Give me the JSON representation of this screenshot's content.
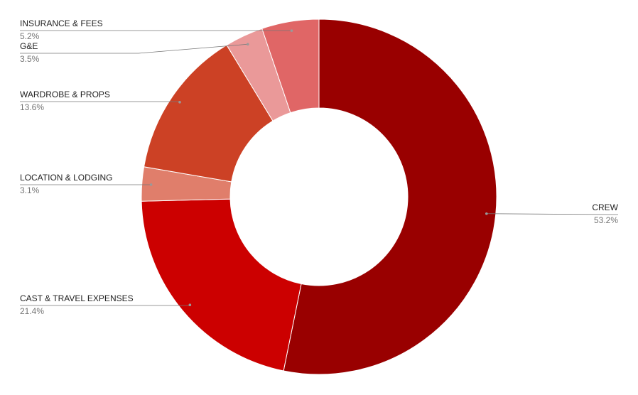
{
  "chart_data": {
    "type": "donut",
    "categories": [
      "CREW",
      "CAST & TRAVEL EXPENSES",
      "LOCATION & LODGING",
      "WARDROBE & PROPS",
      "G&E",
      "INSURANCE & FEES"
    ],
    "values": [
      53.2,
      21.4,
      3.1,
      13.6,
      3.5,
      5.2
    ],
    "value_labels": [
      "53.2%",
      "21.4%",
      "3.1%",
      "13.6%",
      "3.5%",
      "5.2%"
    ],
    "colors": [
      "#990000",
      "#cc0000",
      "#e07e6b",
      "#cc4125",
      "#ea9999",
      "#e06666"
    ]
  }
}
